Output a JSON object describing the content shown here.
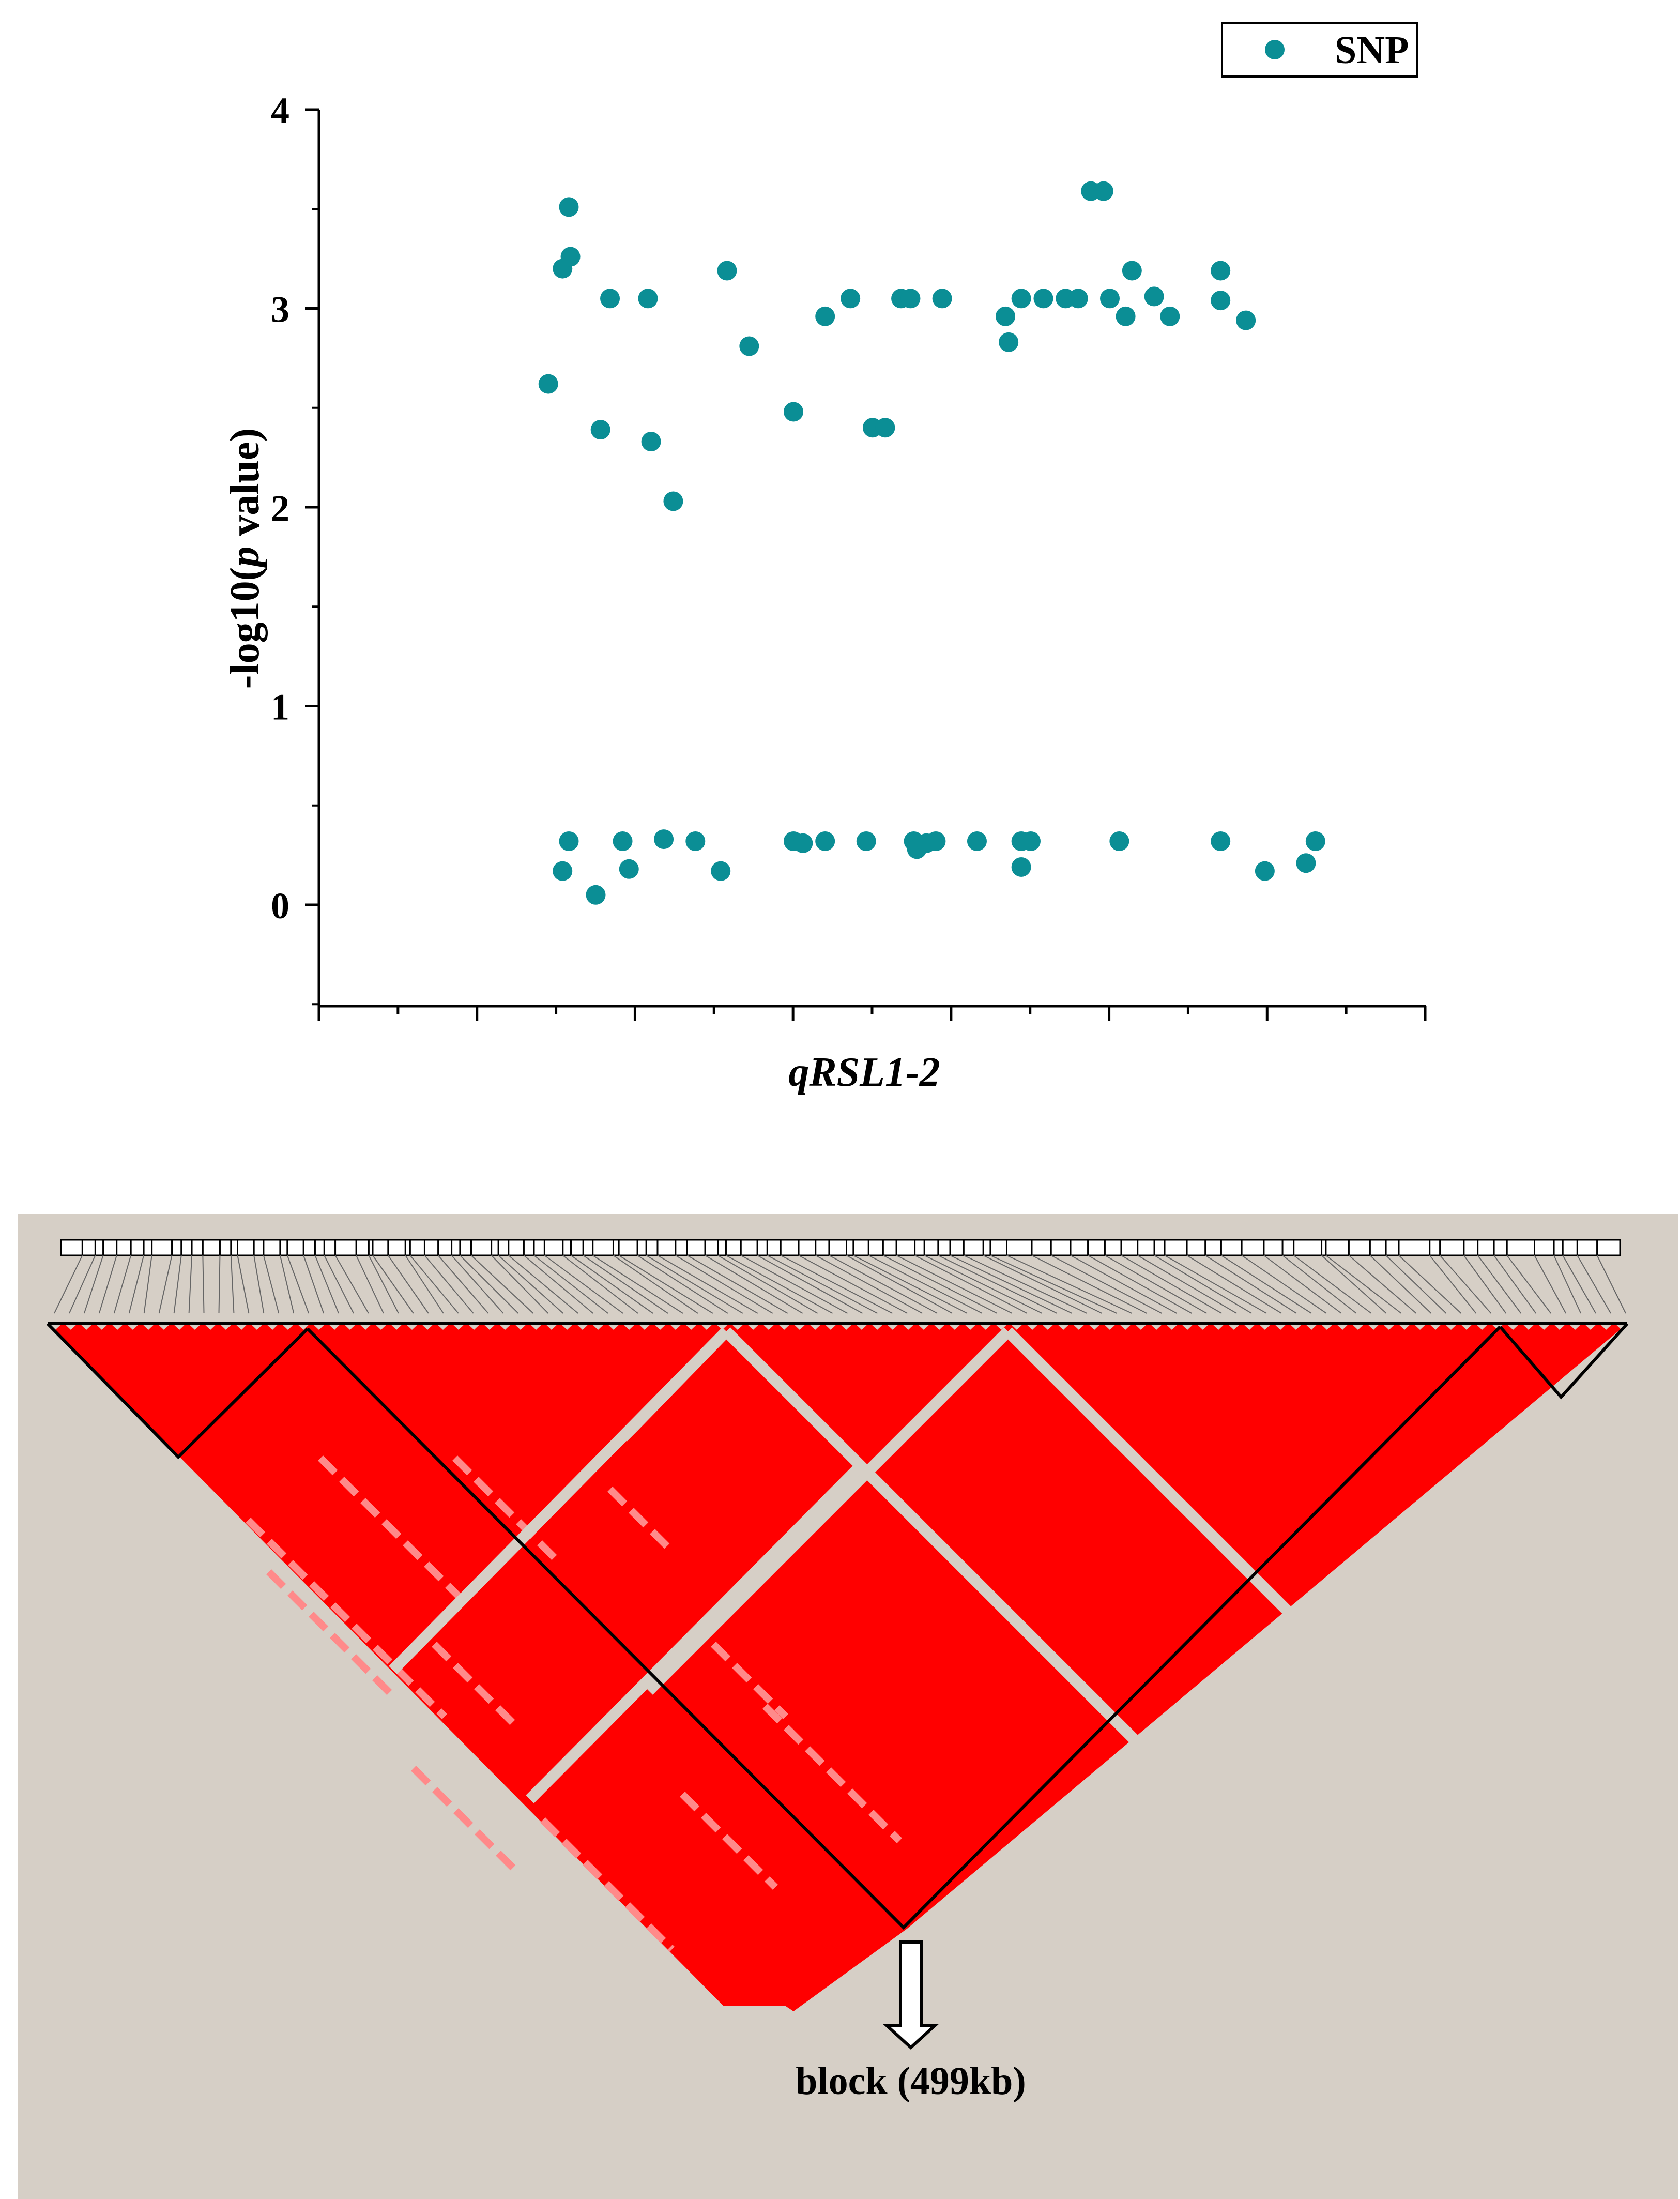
{
  "chart_data": [
    {
      "type": "scatter",
      "title": "",
      "xlabel": "qRSL1-2",
      "ylabel_parts": [
        "-log10(",
        "p",
        " value)"
      ],
      "legend": {
        "label": "SNP",
        "position": "top-right"
      },
      "ylim": [
        -0.5,
        4
      ],
      "yticks": [
        "0",
        "1",
        "2",
        "3",
        "4"
      ],
      "marker_color": "#0b8e95",
      "series": [
        {
          "name": "SNP",
          "points": [
            [
              1.45,
              2.62
            ],
            [
              1.54,
              0.17
            ],
            [
              1.54,
              3.2
            ],
            [
              1.58,
              0.32
            ],
            [
              1.58,
              3.51
            ],
            [
              1.59,
              3.26
            ],
            [
              1.75,
              0.05
            ],
            [
              1.78,
              2.39
            ],
            [
              1.84,
              3.05
            ],
            [
              1.92,
              0.32
            ],
            [
              1.96,
              0.18
            ],
            [
              2.08,
              3.05
            ],
            [
              2.1,
              2.33
            ],
            [
              2.18,
              0.33
            ],
            [
              2.24,
              2.03
            ],
            [
              2.38,
              0.32
            ],
            [
              2.54,
              0.17
            ],
            [
              2.58,
              3.19
            ],
            [
              2.72,
              2.81
            ],
            [
              3.0,
              0.32
            ],
            [
              3.0,
              2.48
            ],
            [
              3.06,
              0.31
            ],
            [
              3.2,
              2.96
            ],
            [
              3.2,
              0.32
            ],
            [
              3.36,
              3.05
            ],
            [
              3.46,
              0.32
            ],
            [
              3.5,
              2.4
            ],
            [
              3.58,
              2.4
            ],
            [
              3.68,
              3.05
            ],
            [
              3.74,
              3.05
            ],
            [
              3.76,
              0.32
            ],
            [
              3.78,
              0.28
            ],
            [
              3.84,
              0.31
            ],
            [
              3.9,
              0.32
            ],
            [
              3.94,
              3.05
            ],
            [
              4.16,
              0.32
            ],
            [
              4.34,
              2.96
            ],
            [
              4.36,
              2.83
            ],
            [
              4.44,
              3.05
            ],
            [
              4.44,
              0.32
            ],
            [
              4.44,
              0.19
            ],
            [
              4.5,
              0.32
            ],
            [
              4.58,
              3.05
            ],
            [
              4.72,
              3.05
            ],
            [
              4.8,
              3.05
            ],
            [
              4.88,
              3.59
            ],
            [
              4.96,
              3.59
            ],
            [
              5.0,
              3.05
            ],
            [
              5.06,
              0.32
            ],
            [
              5.1,
              2.96
            ],
            [
              5.14,
              3.19
            ],
            [
              5.28,
              3.06
            ],
            [
              5.38,
              2.96
            ],
            [
              5.7,
              3.04
            ],
            [
              5.7,
              3.19
            ],
            [
              5.7,
              0.32
            ],
            [
              5.86,
              2.94
            ],
            [
              5.98,
              0.17
            ],
            [
              6.24,
              0.21
            ],
            [
              6.3,
              0.32
            ]
          ]
        }
      ]
    },
    {
      "type": "heatmap",
      "subtype": "linkage-disequilibrium",
      "cell_color": "#ff0000",
      "background_color": "#d6cfc6",
      "annotation": "block (499kb)"
    }
  ]
}
